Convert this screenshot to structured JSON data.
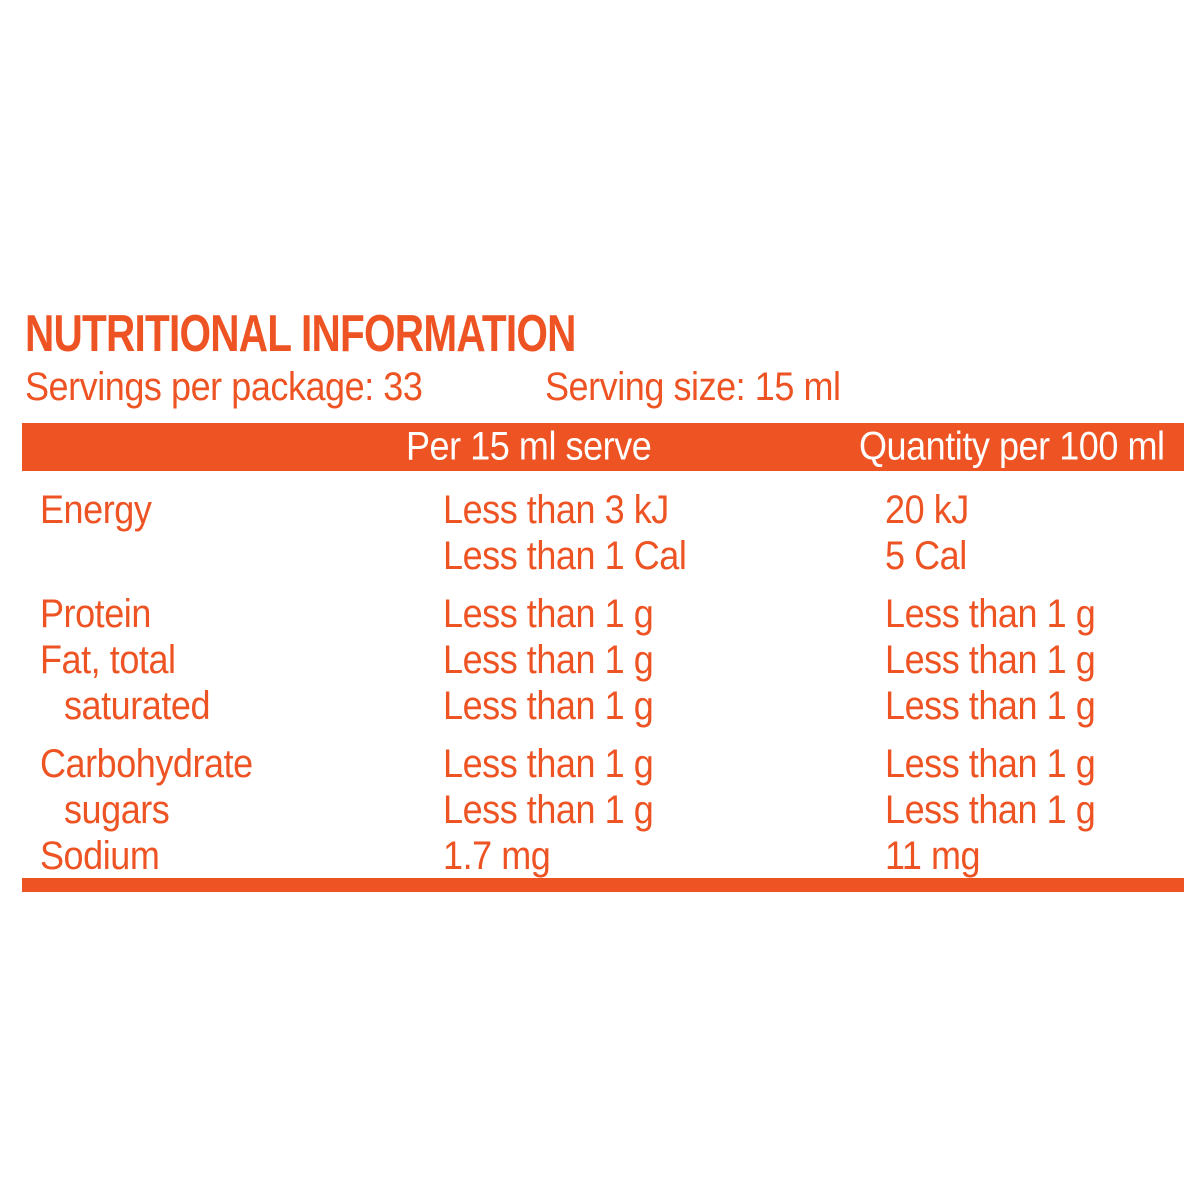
{
  "panel": {
    "title": "NUTRITIONAL INFORMATION",
    "servings_per_package": "Servings per package: 33",
    "serving_size": "Serving size: 15 ml"
  },
  "colors": {
    "accent_orange": "#ee5323",
    "header_text": "#ffffff",
    "background": "#ffffff"
  },
  "table": {
    "columns": [
      "",
      "Per 15 ml serve",
      "Quantity per 100 ml"
    ],
    "rows": [
      {
        "label": "Energy",
        "per_serve": "Less than 3 kJ",
        "per_100": "20 kJ"
      },
      {
        "label": "",
        "per_serve": "Less than 1 Cal",
        "per_100": "5 Cal"
      },
      {
        "label": "Protein",
        "per_serve": "Less than 1 g",
        "per_100": "Less than 1 g"
      },
      {
        "label": "Fat, total",
        "per_serve": "Less than 1 g",
        "per_100": "Less than 1 g"
      },
      {
        "label": "saturated",
        "per_serve": "Less than 1 g",
        "per_100": "Less than 1 g"
      },
      {
        "label": "Carbohydrate",
        "per_serve": "Less than 1 g",
        "per_100": "Less than 1 g"
      },
      {
        "label": "sugars",
        "per_serve": "Less than 1 g",
        "per_100": "Less than 1 g"
      },
      {
        "label": "Sodium",
        "per_serve": "1.7 mg",
        "per_100": "11 mg"
      }
    ]
  }
}
